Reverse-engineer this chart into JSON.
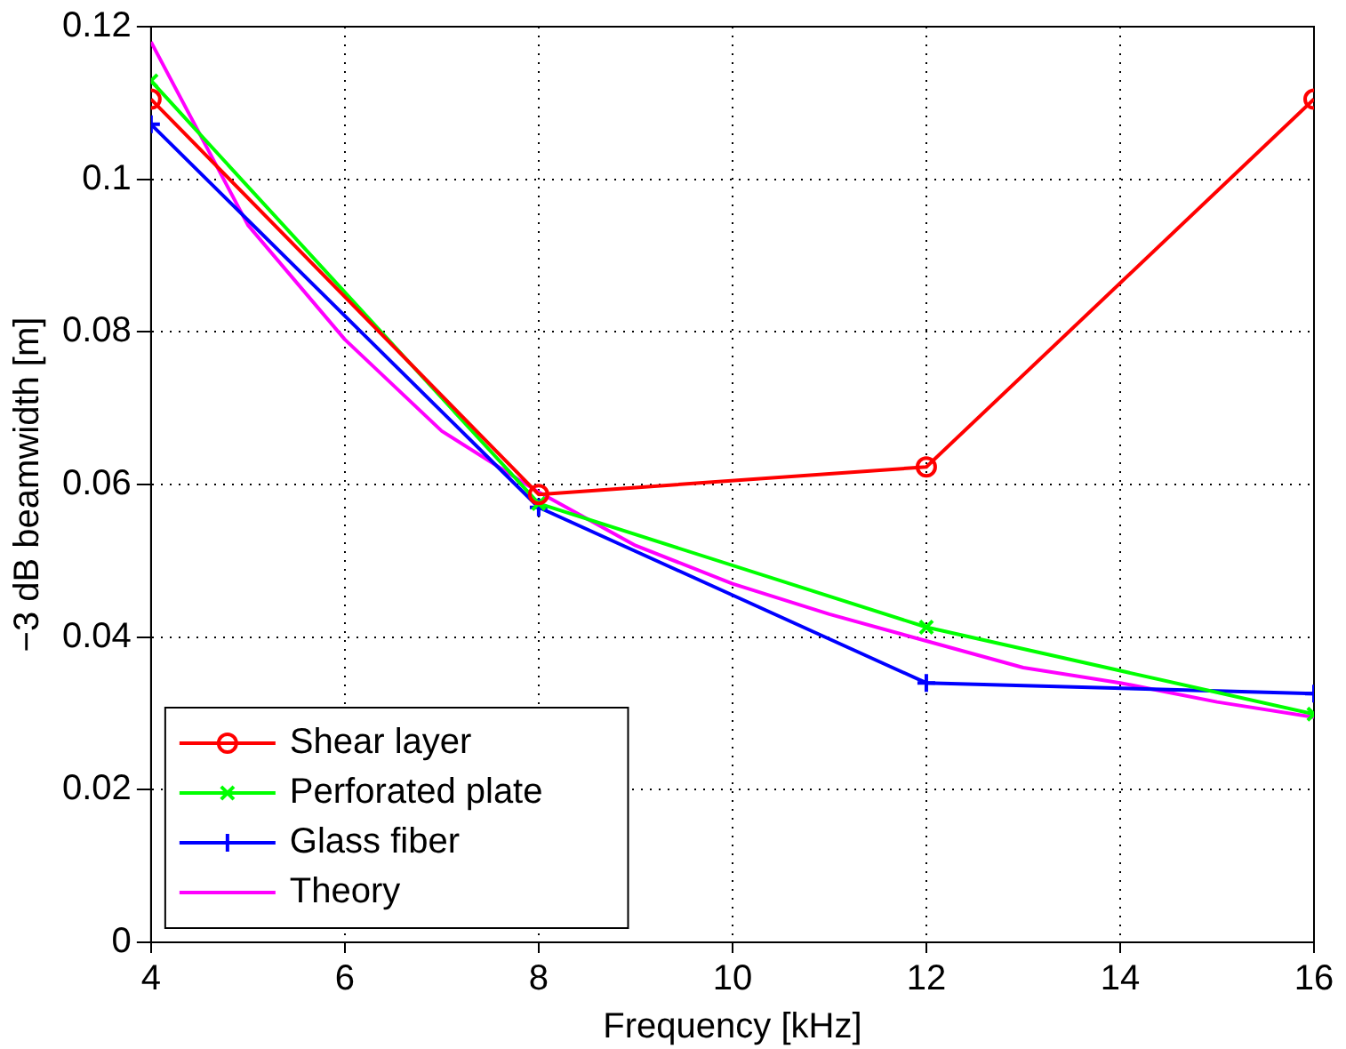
{
  "chart_data": {
    "type": "line",
    "xlabel": "Frequency [kHz]",
    "ylabel": "−3 dB beamwidth [m]",
    "xlim": [
      4,
      16
    ],
    "xticks": [
      4,
      6,
      8,
      10,
      12,
      14,
      16
    ],
    "ylim": [
      0,
      0.12
    ],
    "yticks": [
      0,
      0.02,
      0.04,
      0.06,
      0.08,
      0.1,
      0.12
    ],
    "grid": true,
    "legend": "bottom left",
    "line_style": "solid",
    "series": [
      {
        "name": "Shear layer",
        "color": "#ff0000",
        "marker": "circle",
        "x": [
          4,
          8,
          12,
          16
        ],
        "values": [
          0.1105,
          0.0587,
          0.0623,
          0.1105
        ]
      },
      {
        "name": "Perforated plate",
        "color": "#00ff00",
        "marker": "cross",
        "x": [
          4,
          8,
          12,
          16
        ],
        "values": [
          0.1129,
          0.0575,
          0.0413,
          0.0299
        ]
      },
      {
        "name": "Glass fiber",
        "color": "#0000ff",
        "marker": "cross",
        "x": [
          4,
          8,
          12,
          16
        ],
        "values": [
          0.1072,
          0.057,
          0.034,
          0.0326
        ]
      },
      {
        "name": "Theory",
        "color": "#ff00ff",
        "marker": "none",
        "x": [
          4,
          5,
          6,
          7,
          8,
          9,
          10,
          11,
          12,
          13,
          14,
          15,
          16
        ],
        "values": [
          0.118,
          0.094,
          0.079,
          0.067,
          0.059,
          0.052,
          0.047,
          0.043,
          0.0395,
          0.036,
          0.034,
          0.0315,
          0.0295
        ]
      }
    ]
  }
}
